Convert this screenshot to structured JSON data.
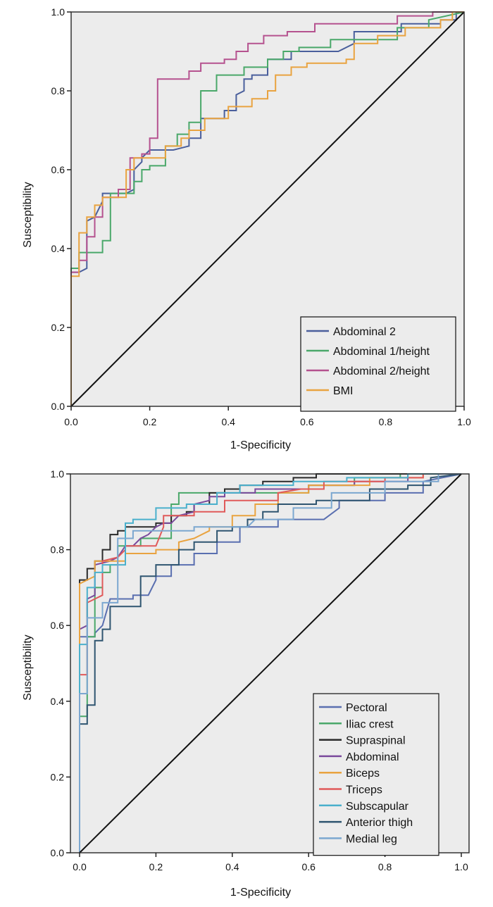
{
  "chart_data": [
    {
      "type": "line",
      "subtype": "roc-step",
      "title": "",
      "xlabel": "1-Specificity",
      "ylabel": "Susceptibility",
      "xlim": [
        0,
        1
      ],
      "ylim": [
        0,
        1
      ],
      "xticks": [
        "0.0",
        "0.2",
        "0.4",
        "0.6",
        "0.8",
        "1.0"
      ],
      "yticks": [
        "0.0",
        "0.2",
        "0.4",
        "0.6",
        "0.8",
        "1.0"
      ],
      "grid": false,
      "legend_position": "bottom-right",
      "reference_line": {
        "x": [
          0,
          1
        ],
        "y": [
          0,
          1
        ],
        "color": "#111111"
      },
      "series": [
        {
          "name": "Abdominal 2",
          "color": "#4a5f9c",
          "x": [
            0,
            0,
            0.02,
            0.04,
            0.04,
            0.06,
            0.08,
            0.08,
            0.14,
            0.16,
            0.16,
            0.18,
            0.18,
            0.2,
            0.26,
            0.3,
            0.3,
            0.33,
            0.33,
            0.39,
            0.39,
            0.42,
            0.42,
            0.44,
            0.44,
            0.46,
            0.46,
            0.5,
            0.5,
            0.56,
            0.56,
            0.68,
            0.72,
            0.72,
            0.84,
            0.84,
            0.94,
            0.94,
            0.98,
            0.98,
            1
          ],
          "y": [
            0,
            0.34,
            0.34,
            0.35,
            0.47,
            0.48,
            0.52,
            0.54,
            0.54,
            0.55,
            0.6,
            0.62,
            0.63,
            0.65,
            0.65,
            0.66,
            0.68,
            0.68,
            0.73,
            0.73,
            0.75,
            0.75,
            0.79,
            0.8,
            0.83,
            0.83,
            0.84,
            0.84,
            0.88,
            0.88,
            0.9,
            0.9,
            0.92,
            0.95,
            0.95,
            0.97,
            0.97,
            0.98,
            0.98,
            1,
            1
          ]
        },
        {
          "name": "Abdominal 1/height",
          "color": "#4aa86a",
          "x": [
            0,
            0,
            0.02,
            0.02,
            0.08,
            0.08,
            0.1,
            0.1,
            0.16,
            0.16,
            0.18,
            0.18,
            0.2,
            0.2,
            0.24,
            0.24,
            0.27,
            0.27,
            0.3,
            0.3,
            0.33,
            0.33,
            0.37,
            0.37,
            0.44,
            0.44,
            0.5,
            0.5,
            0.54,
            0.54,
            0.58,
            0.58,
            0.66,
            0.66,
            0.83,
            0.83,
            0.91,
            0.91,
            1
          ],
          "y": [
            0,
            0.35,
            0.35,
            0.39,
            0.39,
            0.42,
            0.42,
            0.54,
            0.54,
            0.57,
            0.57,
            0.6,
            0.6,
            0.61,
            0.61,
            0.66,
            0.66,
            0.69,
            0.69,
            0.72,
            0.72,
            0.8,
            0.8,
            0.84,
            0.84,
            0.86,
            0.86,
            0.88,
            0.88,
            0.9,
            0.9,
            0.91,
            0.91,
            0.93,
            0.93,
            0.96,
            0.96,
            0.98,
            1
          ]
        },
        {
          "name": "Abdominal 2/height",
          "color": "#b5528f",
          "x": [
            0,
            0,
            0.02,
            0.02,
            0.04,
            0.04,
            0.06,
            0.06,
            0.08,
            0.08,
            0.12,
            0.12,
            0.15,
            0.15,
            0.18,
            0.18,
            0.2,
            0.2,
            0.22,
            0.22,
            0.3,
            0.3,
            0.33,
            0.33,
            0.39,
            0.39,
            0.42,
            0.42,
            0.45,
            0.45,
            0.49,
            0.49,
            0.55,
            0.55,
            0.62,
            0.62,
            0.83,
            0.83,
            0.92,
            0.92,
            1
          ],
          "y": [
            0,
            0.34,
            0.34,
            0.37,
            0.37,
            0.43,
            0.43,
            0.48,
            0.48,
            0.53,
            0.53,
            0.55,
            0.55,
            0.63,
            0.63,
            0.64,
            0.64,
            0.68,
            0.68,
            0.83,
            0.83,
            0.85,
            0.85,
            0.87,
            0.87,
            0.88,
            0.88,
            0.9,
            0.9,
            0.92,
            0.92,
            0.94,
            0.94,
            0.95,
            0.95,
            0.97,
            0.97,
            0.99,
            0.99,
            1,
            1
          ]
        },
        {
          "name": "BMI",
          "color": "#e9a340",
          "x": [
            0,
            0,
            0.02,
            0.02,
            0.04,
            0.04,
            0.06,
            0.06,
            0.08,
            0.08,
            0.14,
            0.14,
            0.16,
            0.16,
            0.24,
            0.24,
            0.28,
            0.28,
            0.3,
            0.3,
            0.34,
            0.34,
            0.4,
            0.4,
            0.46,
            0.46,
            0.5,
            0.5,
            0.52,
            0.52,
            0.56,
            0.56,
            0.6,
            0.6,
            0.7,
            0.7,
            0.72,
            0.72,
            0.78,
            0.78,
            0.85,
            0.85,
            0.94,
            0.94,
            0.97,
            0.97,
            1
          ],
          "y": [
            0,
            0.33,
            0.33,
            0.44,
            0.44,
            0.48,
            0.48,
            0.51,
            0.51,
            0.53,
            0.53,
            0.6,
            0.6,
            0.63,
            0.63,
            0.66,
            0.66,
            0.68,
            0.68,
            0.7,
            0.7,
            0.73,
            0.73,
            0.76,
            0.76,
            0.78,
            0.78,
            0.8,
            0.8,
            0.84,
            0.84,
            0.86,
            0.86,
            0.87,
            0.87,
            0.88,
            0.88,
            0.92,
            0.92,
            0.94,
            0.94,
            0.96,
            0.96,
            0.98,
            0.98,
            1,
            1
          ]
        }
      ]
    },
    {
      "type": "line",
      "subtype": "roc-step",
      "title": "",
      "xlabel": "1-Specificity",
      "ylabel": "Susceptibility",
      "xlim": [
        0,
        1
      ],
      "ylim": [
        0,
        1
      ],
      "xticks": [
        "0.0",
        "0.2",
        "0.4",
        "0.6",
        "0.8",
        "1.0"
      ],
      "yticks": [
        "0.0",
        "0.2",
        "0.4",
        "0.6",
        "0.8",
        "1.0"
      ],
      "grid": false,
      "legend_position": "bottom-right",
      "reference_line": {
        "x": [
          0,
          1
        ],
        "y": [
          0,
          1
        ],
        "color": "#111111"
      },
      "series": [
        {
          "name": "Pectoral",
          "color": "#5a6fb0",
          "x": [
            0,
            0,
            0.04,
            0.04,
            0.06,
            0.08,
            0.14,
            0.14,
            0.18,
            0.2,
            0.2,
            0.24,
            0.24,
            0.3,
            0.3,
            0.36,
            0.36,
            0.42,
            0.42,
            0.52,
            0.52,
            0.64,
            0.68,
            0.68,
            0.8,
            0.8,
            0.9,
            0.9,
            1
          ],
          "y": [
            0,
            0.57,
            0.57,
            0.58,
            0.6,
            0.67,
            0.67,
            0.68,
            0.68,
            0.72,
            0.73,
            0.73,
            0.76,
            0.76,
            0.79,
            0.79,
            0.82,
            0.82,
            0.86,
            0.86,
            0.88,
            0.88,
            0.91,
            0.93,
            0.93,
            0.95,
            0.95,
            0.98,
            1
          ]
        },
        {
          "name": "Iliac crest",
          "color": "#4aa86a",
          "x": [
            0,
            0,
            0.02,
            0.02,
            0.04,
            0.04,
            0.06,
            0.06,
            0.08,
            0.08,
            0.1,
            0.1,
            0.16,
            0.16,
            0.24,
            0.24,
            0.26,
            0.26,
            0.6,
            0.6,
            0.72,
            0.72,
            0.84,
            0.84,
            1
          ],
          "y": [
            0,
            0.36,
            0.36,
            0.57,
            0.57,
            0.7,
            0.7,
            0.74,
            0.74,
            0.76,
            0.76,
            0.81,
            0.81,
            0.83,
            0.83,
            0.92,
            0.92,
            0.95,
            0.95,
            0.97,
            0.97,
            0.99,
            0.99,
            1,
            1
          ]
        },
        {
          "name": "Supraspinal",
          "color": "#2a2a2a",
          "x": [
            0,
            0,
            0.02,
            0.02,
            0.04,
            0.04,
            0.06,
            0.06,
            0.08,
            0.08,
            0.1,
            0.1,
            0.12,
            0.12,
            0.2,
            0.2,
            0.24,
            0.24,
            0.28,
            0.28,
            0.3,
            0.3,
            0.34,
            0.34,
            0.38,
            0.38,
            0.42,
            0.42,
            0.48,
            0.48,
            0.56,
            0.56,
            0.62,
            0.62,
            0.8,
            0.8,
            0.9,
            0.9,
            1
          ],
          "y": [
            0,
            0.72,
            0.72,
            0.75,
            0.75,
            0.77,
            0.77,
            0.8,
            0.8,
            0.84,
            0.84,
            0.85,
            0.85,
            0.86,
            0.86,
            0.87,
            0.87,
            0.89,
            0.89,
            0.9,
            0.9,
            0.92,
            0.92,
            0.95,
            0.95,
            0.96,
            0.96,
            0.97,
            0.97,
            0.98,
            0.98,
            0.99,
            0.99,
            1,
            1,
            1,
            1,
            1,
            1
          ]
        },
        {
          "name": "Abdominal",
          "color": "#7a4a9c",
          "x": [
            0,
            0,
            0.02,
            0.02,
            0.04,
            0.04,
            0.08,
            0.1,
            0.12,
            0.14,
            0.16,
            0.18,
            0.2,
            0.22,
            0.24,
            0.26,
            0.3,
            0.3,
            0.34,
            0.34,
            0.38,
            0.38,
            0.46,
            0.46,
            0.6,
            0.6,
            0.72,
            0.72,
            0.86,
            0.86,
            1
          ],
          "y": [
            0,
            0.59,
            0.6,
            0.67,
            0.68,
            0.76,
            0.77,
            0.78,
            0.81,
            0.81,
            0.83,
            0.84,
            0.86,
            0.87,
            0.87,
            0.89,
            0.9,
            0.92,
            0.93,
            0.94,
            0.94,
            0.95,
            0.95,
            0.96,
            0.96,
            0.97,
            0.97,
            0.98,
            0.98,
            1,
            1
          ]
        },
        {
          "name": "Biceps",
          "color": "#e9a340",
          "x": [
            0,
            0,
            0.02,
            0.04,
            0.04,
            0.12,
            0.12,
            0.2,
            0.2,
            0.26,
            0.26,
            0.3,
            0.34,
            0.34,
            0.4,
            0.4,
            0.46,
            0.46,
            0.52,
            0.52,
            0.6,
            0.6,
            0.76,
            0.76,
            0.9,
            0.9,
            1
          ],
          "y": [
            0,
            0.71,
            0.72,
            0.73,
            0.77,
            0.77,
            0.79,
            0.79,
            0.8,
            0.8,
            0.82,
            0.83,
            0.85,
            0.86,
            0.86,
            0.89,
            0.89,
            0.92,
            0.92,
            0.95,
            0.95,
            0.97,
            0.97,
            0.99,
            0.99,
            1,
            1
          ]
        },
        {
          "name": "Triceps",
          "color": "#e05a5a",
          "x": [
            0,
            0,
            0.02,
            0.02,
            0.04,
            0.06,
            0.06,
            0.1,
            0.12,
            0.12,
            0.2,
            0.22,
            0.22,
            0.3,
            0.3,
            0.38,
            0.38,
            0.52,
            0.52,
            0.58,
            0.64,
            0.64,
            0.8,
            0.8,
            0.9,
            0.9,
            1
          ],
          "y": [
            0,
            0.47,
            0.47,
            0.66,
            0.67,
            0.68,
            0.77,
            0.78,
            0.8,
            0.81,
            0.81,
            0.86,
            0.89,
            0.89,
            0.9,
            0.9,
            0.93,
            0.93,
            0.95,
            0.96,
            0.96,
            0.98,
            0.98,
            0.99,
            0.99,
            1,
            1
          ]
        },
        {
          "name": "Subscapular",
          "color": "#4ab0cc",
          "x": [
            0,
            0,
            0.02,
            0.02,
            0.04,
            0.04,
            0.06,
            0.06,
            0.12,
            0.12,
            0.14,
            0.14,
            0.2,
            0.2,
            0.28,
            0.28,
            0.36,
            0.36,
            0.42,
            0.42,
            0.56,
            0.56,
            0.7,
            0.7,
            0.86,
            0.86,
            1
          ],
          "y": [
            0,
            0.55,
            0.55,
            0.7,
            0.7,
            0.74,
            0.74,
            0.76,
            0.76,
            0.87,
            0.87,
            0.88,
            0.88,
            0.91,
            0.91,
            0.92,
            0.92,
            0.95,
            0.95,
            0.97,
            0.97,
            0.98,
            0.98,
            0.99,
            0.99,
            1,
            1
          ]
        },
        {
          "name": "Anterior thigh",
          "color": "#2f5570",
          "x": [
            0,
            0,
            0.02,
            0.02,
            0.04,
            0.04,
            0.06,
            0.06,
            0.08,
            0.08,
            0.16,
            0.16,
            0.2,
            0.2,
            0.26,
            0.26,
            0.3,
            0.3,
            0.36,
            0.36,
            0.4,
            0.4,
            0.44,
            0.44,
            0.48,
            0.48,
            0.52,
            0.52,
            0.62,
            0.62,
            0.76,
            0.76,
            0.86,
            0.86,
            0.92,
            0.92,
            1
          ],
          "y": [
            0,
            0.34,
            0.34,
            0.39,
            0.39,
            0.56,
            0.56,
            0.59,
            0.59,
            0.65,
            0.65,
            0.73,
            0.73,
            0.76,
            0.76,
            0.8,
            0.8,
            0.82,
            0.82,
            0.85,
            0.85,
            0.86,
            0.86,
            0.88,
            0.88,
            0.9,
            0.9,
            0.92,
            0.92,
            0.93,
            0.93,
            0.96,
            0.96,
            0.97,
            0.97,
            0.99,
            1
          ]
        },
        {
          "name": "Medial leg",
          "color": "#7ba7d0",
          "x": [
            0,
            0,
            0.02,
            0.02,
            0.06,
            0.06,
            0.1,
            0.1,
            0.14,
            0.14,
            0.3,
            0.3,
            0.44,
            0.46,
            0.56,
            0.56,
            0.66,
            0.66,
            0.8,
            0.8,
            0.94,
            0.94,
            1
          ],
          "y": [
            0,
            0.42,
            0.42,
            0.62,
            0.62,
            0.66,
            0.66,
            0.83,
            0.83,
            0.85,
            0.85,
            0.86,
            0.86,
            0.88,
            0.88,
            0.91,
            0.91,
            0.95,
            0.95,
            0.98,
            0.98,
            1,
            1
          ]
        }
      ]
    }
  ]
}
